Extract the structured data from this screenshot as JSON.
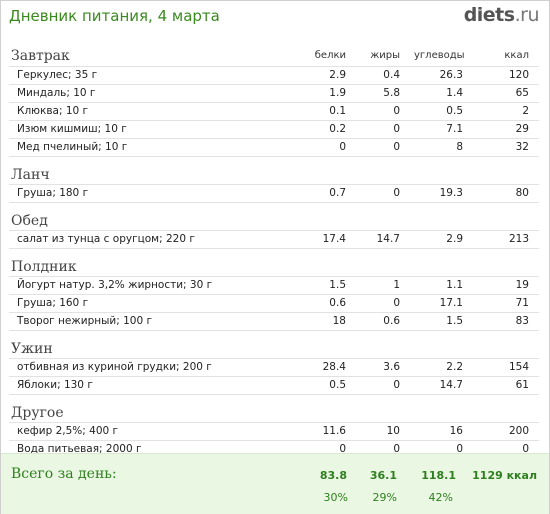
{
  "header": {
    "title": "Дневник питания, 4 марта",
    "logo_main": "diets",
    "logo_suffix": ".ru"
  },
  "columns": {
    "protein": "белки",
    "fat": "жиры",
    "carbs": "углеводы",
    "kcal": "ккал"
  },
  "meals": [
    {
      "title": "Завтрак",
      "rows": [
        {
          "name": "Геркулес; 35 г",
          "protein": "2.9",
          "fat": "0.4",
          "carbs": "26.3",
          "kcal": "120"
        },
        {
          "name": "Миндаль; 10 г",
          "protein": "1.9",
          "fat": "5.8",
          "carbs": "1.4",
          "kcal": "65"
        },
        {
          "name": "Клюква; 10 г",
          "protein": "0.1",
          "fat": "0",
          "carbs": "0.5",
          "kcal": "2"
        },
        {
          "name": "Изюм кишмиш; 10 г",
          "protein": "0.2",
          "fat": "0",
          "carbs": "7.1",
          "kcal": "29"
        },
        {
          "name": "Мед пчелиный; 10 г",
          "protein": "0",
          "fat": "0",
          "carbs": "8",
          "kcal": "32"
        }
      ]
    },
    {
      "title": "Ланч",
      "rows": [
        {
          "name": "Груша; 180 г",
          "protein": "0.7",
          "fat": "0",
          "carbs": "19.3",
          "kcal": "80"
        }
      ]
    },
    {
      "title": "Обед",
      "rows": [
        {
          "name": "салат из тунца с оругцом; 220 г",
          "protein": "17.4",
          "fat": "14.7",
          "carbs": "2.9",
          "kcal": "213"
        }
      ]
    },
    {
      "title": "Полдник",
      "rows": [
        {
          "name": "Йогурт натур. 3,2% жирности; 30 г",
          "protein": "1.5",
          "fat": "1",
          "carbs": "1.1",
          "kcal": "19"
        },
        {
          "name": "Груша; 160 г",
          "protein": "0.6",
          "fat": "0",
          "carbs": "17.1",
          "kcal": "71"
        },
        {
          "name": "Творог нежирный; 100 г",
          "protein": "18",
          "fat": "0.6",
          "carbs": "1.5",
          "kcal": "83"
        }
      ]
    },
    {
      "title": "Ужин",
      "rows": [
        {
          "name": "отбивная из куриной грудки; 200 г",
          "protein": "28.4",
          "fat": "3.6",
          "carbs": "2.2",
          "kcal": "154"
        },
        {
          "name": "Яблоки; 130 г",
          "protein": "0.5",
          "fat": "0",
          "carbs": "14.7",
          "kcal": "61"
        }
      ]
    },
    {
      "title": "Другое",
      "rows": [
        {
          "name": "кефир 2,5%; 400 г",
          "protein": "11.6",
          "fat": "10",
          "carbs": "16",
          "kcal": "200"
        },
        {
          "name": "Вода питьевая; 2000 г",
          "protein": "0",
          "fat": "0",
          "carbs": "0",
          "kcal": "0"
        }
      ]
    }
  ],
  "totals": {
    "label": "Всего за день:",
    "protein": "83.8",
    "fat": "36.1",
    "carbs": "118.1",
    "kcal": "1129 ккал",
    "protein_pct": "30%",
    "fat_pct": "29%",
    "carbs_pct": "42%"
  },
  "colors": {
    "accent_green": "#3a8a1e",
    "totals_bg": "#eaf7e2"
  }
}
